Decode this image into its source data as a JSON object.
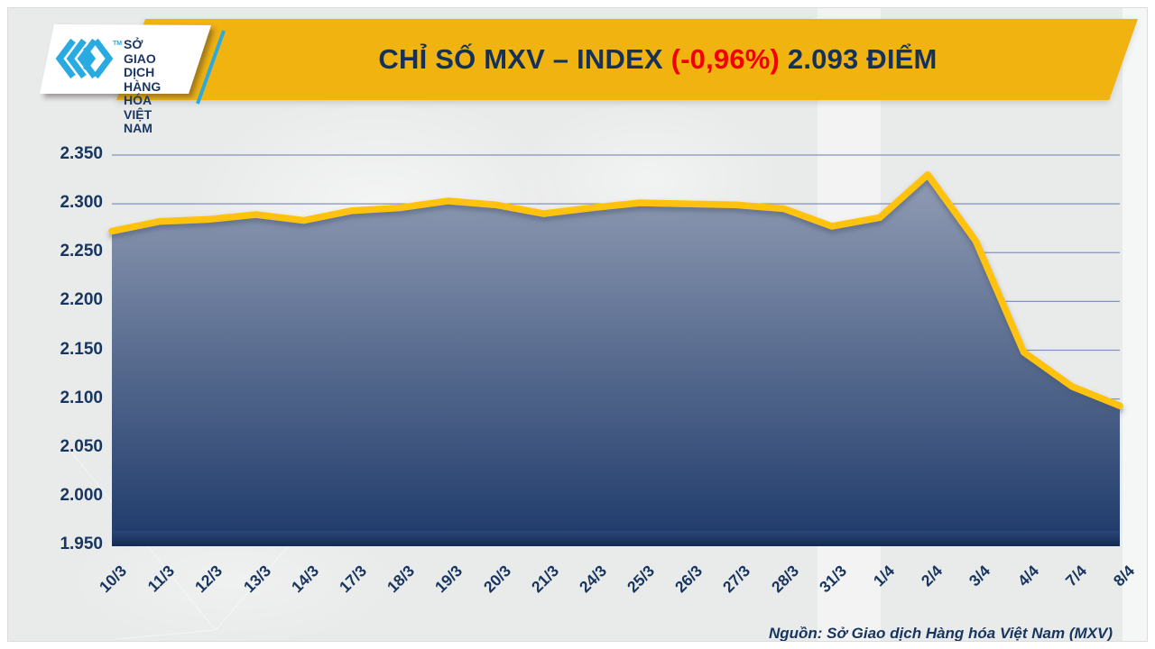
{
  "header": {
    "logo": {
      "icon": "mxv-chevrons-logo",
      "line1": "SỞ GIAO DỊCH",
      "line2": "HÀNG HÓA",
      "line3": "VIỆT NAM",
      "tm": "TM",
      "brand_blue": "#29ABE2",
      "navy": "#1C3765"
    },
    "banner": {
      "title_prefix": "CHỈ SỐ MXV – INDEX ",
      "title_change": "(-0,96%)",
      "title_suffix": " 2.093 ĐIỂM",
      "bg_color": "#F0B310",
      "text_color": "#14315C",
      "change_color": "#F20000"
    }
  },
  "footer": {
    "source": "Nguồn: Sở Giao dịch Hàng hóa Việt Nam (MXV)"
  },
  "chart_data": {
    "type": "area",
    "title": "CHỈ SỐ MXV – INDEX (-0,96%) 2.093 ĐIỂM",
    "categories": [
      "10/3",
      "11/3",
      "12/3",
      "13/3",
      "14/3",
      "17/3",
      "18/3",
      "19/3",
      "20/3",
      "21/3",
      "24/3",
      "25/3",
      "26/3",
      "27/3",
      "28/3",
      "31/3",
      "1/4",
      "2/4",
      "3/4",
      "4/4",
      "7/4",
      "8/4"
    ],
    "values": [
      2.272,
      2.282,
      2.284,
      2.289,
      2.283,
      2.293,
      2.296,
      2.303,
      2.299,
      2.29,
      2.296,
      2.301,
      2.3,
      2.299,
      2.295,
      2.277,
      2.286,
      2.33,
      2.262,
      2.148,
      2.113,
      2.093
    ],
    "xlabel": "",
    "ylabel": "",
    "ylim": [
      1.95,
      2.35
    ],
    "ytick_step": 0.05,
    "ytick_labels": [
      "2.350",
      "2.300",
      "2.250",
      "2.200",
      "2.150",
      "2.100",
      "2.050",
      "2.000",
      "1.950"
    ],
    "grid": true,
    "legend": "none",
    "line_color": "#FFC30B",
    "area_gradient_top": "#98A2B8",
    "area_gradient_bottom": "#1E3A6A",
    "gridline_color": "#8493BB",
    "axis_bar_top": "#2A4677",
    "axis_bar_bottom": "#132B53",
    "tick_label_color": "#17355F"
  }
}
